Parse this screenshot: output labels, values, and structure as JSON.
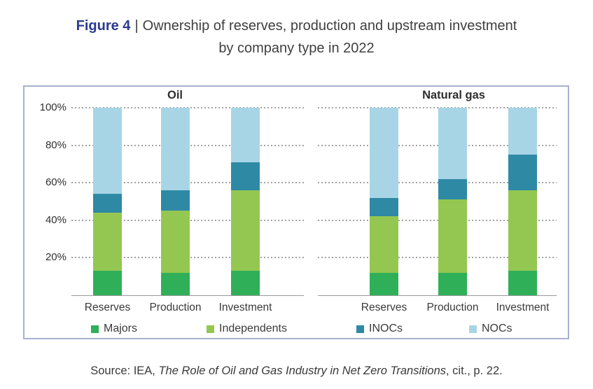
{
  "title": {
    "figure_label": "Figure 4",
    "separator": "|",
    "line1": "Ownership of reserves, production and upstream investment",
    "line2": "by company type in 2022"
  },
  "source": {
    "prefix": "Source: IEA, ",
    "italic": "The Role of Oil and Gas Industry in Net Zero Transitions",
    "suffix": ", cit., p. 22."
  },
  "colors": {
    "figure_label_blue": "#2b3990",
    "title_text": "#3f3f3f",
    "panel_border": "#a7b0cf",
    "gridline": "#a3a3a3",
    "axis_line": "#9a9a9a",
    "majors_green": "#2fb058",
    "independents_green": "#94c751",
    "inocs_teal": "#2e89a5",
    "nocs_blue": "#a8d5e5"
  },
  "chart_data": [
    {
      "type": "bar",
      "stacked": true,
      "title": "Oil",
      "categories": [
        "Reserves",
        "Production",
        "Investment"
      ],
      "series": [
        {
          "name": "Majors",
          "color": "#2fb058",
          "values": [
            13,
            12,
            13
          ]
        },
        {
          "name": "Independents",
          "color": "#94c751",
          "values": [
            31,
            33,
            43
          ]
        },
        {
          "name": "INOCs",
          "color": "#2e89a5",
          "values": [
            10,
            11,
            15
          ]
        },
        {
          "name": "NOCs",
          "color": "#a8d5e5",
          "values": [
            46,
            44,
            29
          ]
        }
      ],
      "ylabel": "",
      "xlabel": "",
      "ylim": [
        0,
        100
      ],
      "yticks": [
        "20%",
        "40%",
        "60%",
        "80%",
        "100%"
      ],
      "grid": "horizontal-dotted",
      "legend_position": "bottom"
    },
    {
      "type": "bar",
      "stacked": true,
      "title": "Natural gas",
      "categories": [
        "Reserves",
        "Production",
        "Investment"
      ],
      "series": [
        {
          "name": "Majors",
          "color": "#2fb058",
          "values": [
            12,
            12,
            13
          ]
        },
        {
          "name": "Independents",
          "color": "#94c751",
          "values": [
            30,
            39,
            43
          ]
        },
        {
          "name": "INOCs",
          "color": "#2e89a5",
          "values": [
            10,
            11,
            19
          ]
        },
        {
          "name": "NOCs",
          "color": "#a8d5e5",
          "values": [
            48,
            38,
            25
          ]
        }
      ],
      "ylabel": "",
      "xlabel": "",
      "ylim": [
        0,
        100
      ],
      "yticks": [
        "20%",
        "40%",
        "60%",
        "80%",
        "100%"
      ],
      "grid": "horizontal-dotted",
      "legend_position": "bottom"
    }
  ],
  "legend": {
    "items": [
      "Majors",
      "Independents",
      "INOCs",
      "NOCs"
    ]
  }
}
